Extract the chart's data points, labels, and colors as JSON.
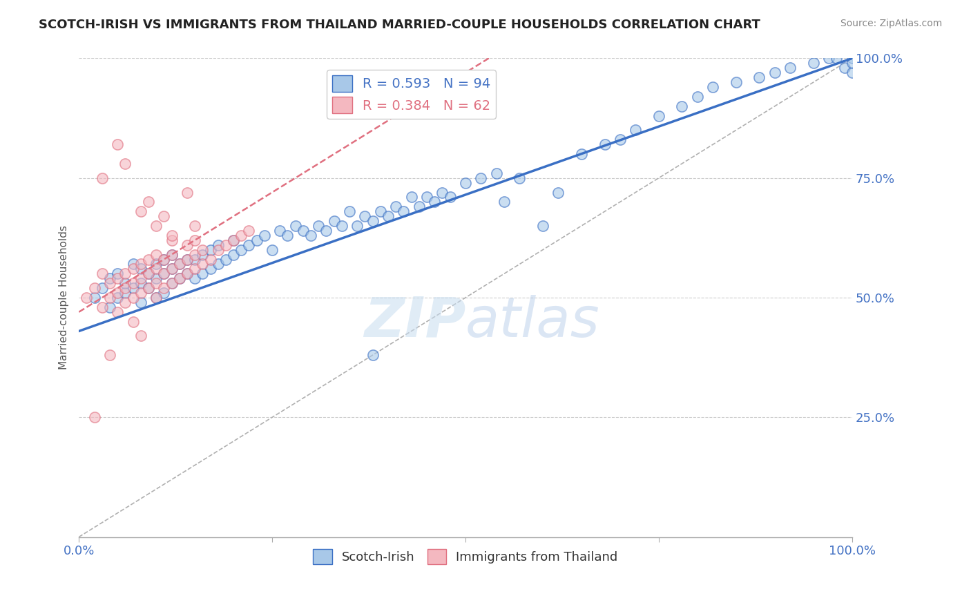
{
  "title": "SCOTCH-IRISH VS IMMIGRANTS FROM THAILAND MARRIED-COUPLE HOUSEHOLDS CORRELATION CHART",
  "source_text": "Source: ZipAtlas.com",
  "ylabel": "Married-couple Households",
  "r_blue": 0.593,
  "n_blue": 94,
  "r_pink": 0.384,
  "n_pink": 62,
  "blue_color": "#a8c8e8",
  "pink_color": "#f4b8c0",
  "blue_line_color": "#3a6fc4",
  "pink_line_color": "#e07080",
  "axis_label_color": "#4472c4",
  "title_color": "#222222",
  "background_color": "#ffffff",
  "grid_color": "#cccccc",
  "watermark_color": "#d8e8f4",
  "xlim": [
    0,
    1
  ],
  "ylim": [
    0,
    1
  ],
  "ytick_labels": [
    "25.0%",
    "50.0%",
    "75.0%",
    "100.0%"
  ],
  "ytick_values": [
    0.25,
    0.5,
    0.75,
    1.0
  ],
  "blue_scatter_x": [
    0.02,
    0.03,
    0.04,
    0.04,
    0.05,
    0.05,
    0.06,
    0.06,
    0.07,
    0.07,
    0.08,
    0.08,
    0.08,
    0.09,
    0.09,
    0.1,
    0.1,
    0.1,
    0.11,
    0.11,
    0.11,
    0.12,
    0.12,
    0.12,
    0.13,
    0.13,
    0.14,
    0.14,
    0.15,
    0.15,
    0.16,
    0.16,
    0.17,
    0.17,
    0.18,
    0.18,
    0.19,
    0.2,
    0.2,
    0.21,
    0.22,
    0.23,
    0.24,
    0.25,
    0.26,
    0.27,
    0.28,
    0.29,
    0.3,
    0.31,
    0.32,
    0.33,
    0.34,
    0.35,
    0.36,
    0.37,
    0.38,
    0.39,
    0.4,
    0.41,
    0.42,
    0.43,
    0.44,
    0.45,
    0.46,
    0.47,
    0.48,
    0.5,
    0.52,
    0.54,
    0.55,
    0.57,
    0.6,
    0.62,
    0.65,
    0.68,
    0.7,
    0.72,
    0.75,
    0.78,
    0.8,
    0.82,
    0.85,
    0.88,
    0.9,
    0.92,
    0.95,
    0.97,
    0.98,
    0.99,
    1.0,
    1.0,
    1.0,
    0.38
  ],
  "blue_scatter_y": [
    0.5,
    0.52,
    0.48,
    0.54,
    0.5,
    0.55,
    0.51,
    0.53,
    0.52,
    0.57,
    0.49,
    0.53,
    0.56,
    0.52,
    0.55,
    0.5,
    0.54,
    0.57,
    0.51,
    0.55,
    0.58,
    0.53,
    0.56,
    0.59,
    0.54,
    0.57,
    0.55,
    0.58,
    0.54,
    0.58,
    0.55,
    0.59,
    0.56,
    0.6,
    0.57,
    0.61,
    0.58,
    0.59,
    0.62,
    0.6,
    0.61,
    0.62,
    0.63,
    0.6,
    0.64,
    0.63,
    0.65,
    0.64,
    0.63,
    0.65,
    0.64,
    0.66,
    0.65,
    0.68,
    0.65,
    0.67,
    0.66,
    0.68,
    0.67,
    0.69,
    0.68,
    0.71,
    0.69,
    0.71,
    0.7,
    0.72,
    0.71,
    0.74,
    0.75,
    0.76,
    0.7,
    0.75,
    0.65,
    0.72,
    0.8,
    0.82,
    0.83,
    0.85,
    0.88,
    0.9,
    0.92,
    0.94,
    0.95,
    0.96,
    0.97,
    0.98,
    0.99,
    1.0,
    1.0,
    0.98,
    0.97,
    1.0,
    0.99,
    0.38
  ],
  "pink_scatter_x": [
    0.01,
    0.02,
    0.03,
    0.03,
    0.04,
    0.04,
    0.05,
    0.05,
    0.05,
    0.06,
    0.06,
    0.06,
    0.07,
    0.07,
    0.07,
    0.08,
    0.08,
    0.08,
    0.09,
    0.09,
    0.09,
    0.1,
    0.1,
    0.1,
    0.1,
    0.11,
    0.11,
    0.11,
    0.12,
    0.12,
    0.12,
    0.12,
    0.13,
    0.13,
    0.14,
    0.14,
    0.14,
    0.15,
    0.15,
    0.15,
    0.15,
    0.16,
    0.16,
    0.17,
    0.18,
    0.19,
    0.2,
    0.21,
    0.22,
    0.14,
    0.05,
    0.03,
    0.06,
    0.08,
    0.09,
    0.1,
    0.11,
    0.12,
    0.07,
    0.08,
    0.04,
    0.02
  ],
  "pink_scatter_y": [
    0.5,
    0.52,
    0.55,
    0.48,
    0.5,
    0.53,
    0.47,
    0.51,
    0.54,
    0.49,
    0.52,
    0.55,
    0.5,
    0.53,
    0.56,
    0.51,
    0.54,
    0.57,
    0.52,
    0.55,
    0.58,
    0.5,
    0.53,
    0.56,
    0.59,
    0.52,
    0.55,
    0.58,
    0.53,
    0.56,
    0.59,
    0.62,
    0.54,
    0.57,
    0.55,
    0.58,
    0.61,
    0.56,
    0.59,
    0.62,
    0.65,
    0.57,
    0.6,
    0.58,
    0.6,
    0.61,
    0.62,
    0.63,
    0.64,
    0.72,
    0.82,
    0.75,
    0.78,
    0.68,
    0.7,
    0.65,
    0.67,
    0.63,
    0.45,
    0.42,
    0.38,
    0.25
  ]
}
